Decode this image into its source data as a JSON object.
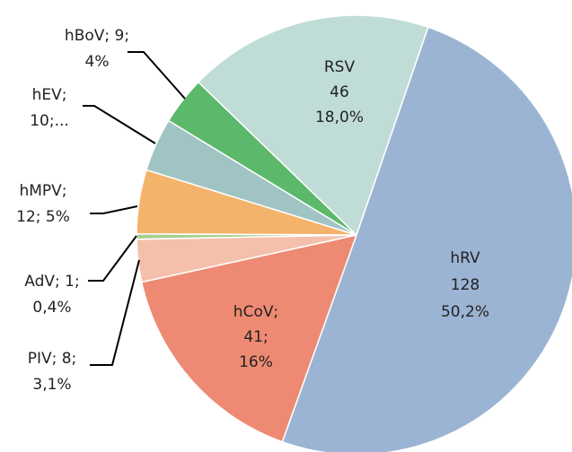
{
  "chart_data": {
    "type": "pie",
    "values": [
      128,
      41,
      8,
      1,
      12,
      10,
      9,
      46
    ],
    "value_labels": [
      [
        "hRV",
        "128",
        "50,2%"
      ],
      [
        "hCoV;",
        "41;",
        "16%"
      ],
      [
        "PIV; 8;",
        "3,1%"
      ],
      [
        "AdV; 1;",
        "0,4%"
      ],
      [
        "hMPV;",
        "12; 5%"
      ],
      [
        "hEV;",
        "10;..."
      ],
      [
        "hBoV; 9;",
        "4%"
      ],
      [
        "RSV",
        "46",
        "18,0%"
      ]
    ],
    "colors": [
      "#9bb4d3",
      "#ee8a73",
      "#f5c0ab",
      "#a9d08e",
      "#f4b36b",
      "#9fc4c3",
      "#5cb86b",
      "#c0dcd6"
    ],
    "start_angle": 19
  }
}
